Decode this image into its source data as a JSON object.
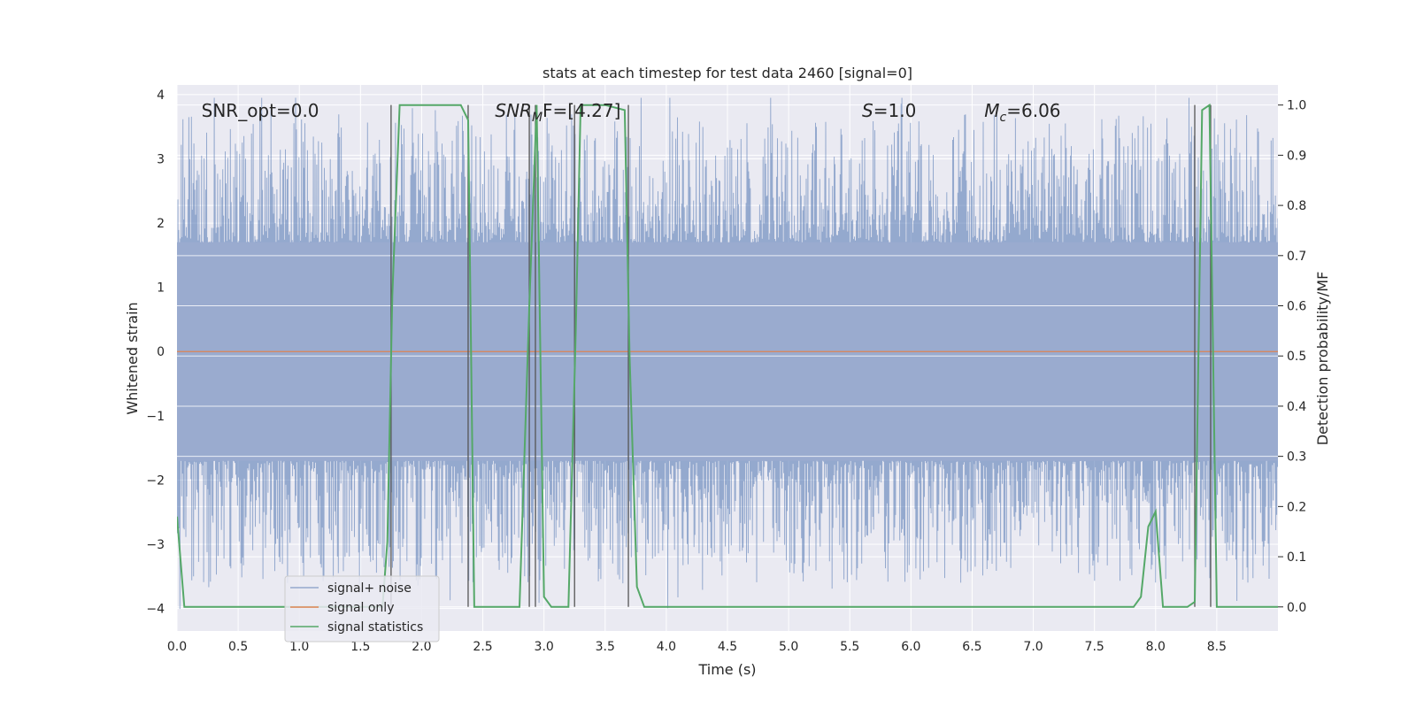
{
  "chart_data": {
    "type": "line",
    "title": "stats at each timestep for test data 2460 [signal=0]",
    "xlabel": "Time (s)",
    "ylabel": "Whitened strain",
    "y2label": "Detection probability/MF",
    "xlim": [
      0,
      9.0
    ],
    "ylim": [
      -4.35,
      4.15
    ],
    "y2lim": [
      -0.048,
      1.04
    ],
    "xticks": [
      0.0,
      0.5,
      1.0,
      1.5,
      2.0,
      2.5,
      3.0,
      3.5,
      4.0,
      4.5,
      5.0,
      5.5,
      6.0,
      6.5,
      7.0,
      7.5,
      8.0,
      8.5
    ],
    "xtick_labels": [
      "0.0",
      "0.5",
      "1.0",
      "1.5",
      "2.0",
      "2.5",
      "3.0",
      "3.5",
      "4.0",
      "4.5",
      "5.0",
      "5.5",
      "6.0",
      "6.5",
      "7.0",
      "7.5",
      "8.0",
      "8.5"
    ],
    "yticks": [
      4,
      3,
      2,
      1,
      0,
      -1,
      -2,
      -3,
      -4
    ],
    "ytick_labels": [
      "4",
      "3",
      "2",
      "1",
      "0",
      "−1",
      "−2",
      "−3",
      "−4"
    ],
    "y2ticks": [
      1.0,
      0.9,
      0.8,
      0.7,
      0.6,
      0.5,
      0.4,
      0.3,
      0.2,
      0.1,
      0.0
    ],
    "y2tick_labels": [
      "1.0",
      "0.9",
      "0.8",
      "0.7",
      "0.6",
      "0.5",
      "0.4",
      "0.3",
      "0.2",
      "0.1",
      "0.0"
    ],
    "grid": true,
    "legend_placement": "lower-left",
    "colors": {
      "noise": "#4c72b0",
      "signal": "#dd8452",
      "stats": "#55a868",
      "vlines": "#555555",
      "plot_bg": "#eaeaf2",
      "grid": "#ffffff"
    },
    "annotations": [
      {
        "text": "SNR_opt=0.0",
        "x": 0.2,
        "y": 3.75
      },
      {
        "text": "SNR",
        "sub": "M",
        "tail": "F=[4.27]",
        "italic": true,
        "x": 2.6,
        "y": 3.75
      },
      {
        "text": "S",
        "tail": "=1.0",
        "italic": true,
        "x": 5.6,
        "y": 3.75
      },
      {
        "text": "M",
        "sub": "c",
        "tail": "=6.06",
        "italic": true,
        "x": 6.6,
        "y": 3.75
      }
    ],
    "series": [
      {
        "name": "signal+ noise",
        "role": "noise",
        "envelope_hi": 1.7,
        "envelope_lo": -1.7
      },
      {
        "name": "signal only",
        "role": "signal",
        "x": [
          0,
          9.0
        ],
        "y": [
          0,
          0
        ]
      },
      {
        "name": "signal statistics",
        "role": "stats",
        "axis": "right",
        "x": [
          0.0,
          0.06,
          0.12,
          0.5,
          1.0,
          1.5,
          1.62,
          1.68,
          1.72,
          1.76,
          1.82,
          1.88,
          2.0,
          2.2,
          2.32,
          2.38,
          2.43,
          2.49,
          2.6,
          2.8,
          2.88,
          2.94,
          3.0,
          3.06,
          3.12,
          3.2,
          3.26,
          3.3,
          3.34,
          3.5,
          3.66,
          3.7,
          3.76,
          3.82,
          4.0,
          5.0,
          6.0,
          7.0,
          7.5,
          7.82,
          7.88,
          7.94,
          8.0,
          8.06,
          8.12,
          8.26,
          8.32,
          8.38,
          8.44,
          8.5,
          8.6,
          9.0
        ],
        "y": [
          0.18,
          0.0,
          0.0,
          0.0,
          0.0,
          0.0,
          0.0,
          0.0,
          0.13,
          0.62,
          1.0,
          1.0,
          1.0,
          1.0,
          1.0,
          0.97,
          0.0,
          0.0,
          0.0,
          0.0,
          0.6,
          1.0,
          0.02,
          0.0,
          0.0,
          0.0,
          0.55,
          1.0,
          1.0,
          1.0,
          0.99,
          0.5,
          0.04,
          0.0,
          0.0,
          0.0,
          0.0,
          0.0,
          0.0,
          0.0,
          0.02,
          0.16,
          0.19,
          0.0,
          0.0,
          0.0,
          0.01,
          0.99,
          1.0,
          0.0,
          0.0,
          0.0
        ]
      }
    ],
    "vlines": [
      {
        "x": 1.75,
        "y": [
          0.0,
          1.0
        ],
        "axis": "right"
      },
      {
        "x": 2.38,
        "y": [
          0.0,
          1.0
        ],
        "axis": "right"
      },
      {
        "x": 2.88,
        "y": [
          0.0,
          1.0
        ],
        "axis": "right"
      },
      {
        "x": 2.93,
        "y": [
          0.0,
          1.0
        ],
        "axis": "right"
      },
      {
        "x": 3.25,
        "y": [
          0.0,
          1.0
        ],
        "axis": "right"
      },
      {
        "x": 3.69,
        "y": [
          0.0,
          1.0
        ],
        "axis": "right"
      },
      {
        "x": 8.32,
        "y": [
          0.0,
          1.0
        ],
        "axis": "right"
      },
      {
        "x": 8.45,
        "y": [
          0.0,
          1.0
        ],
        "axis": "right"
      }
    ]
  }
}
